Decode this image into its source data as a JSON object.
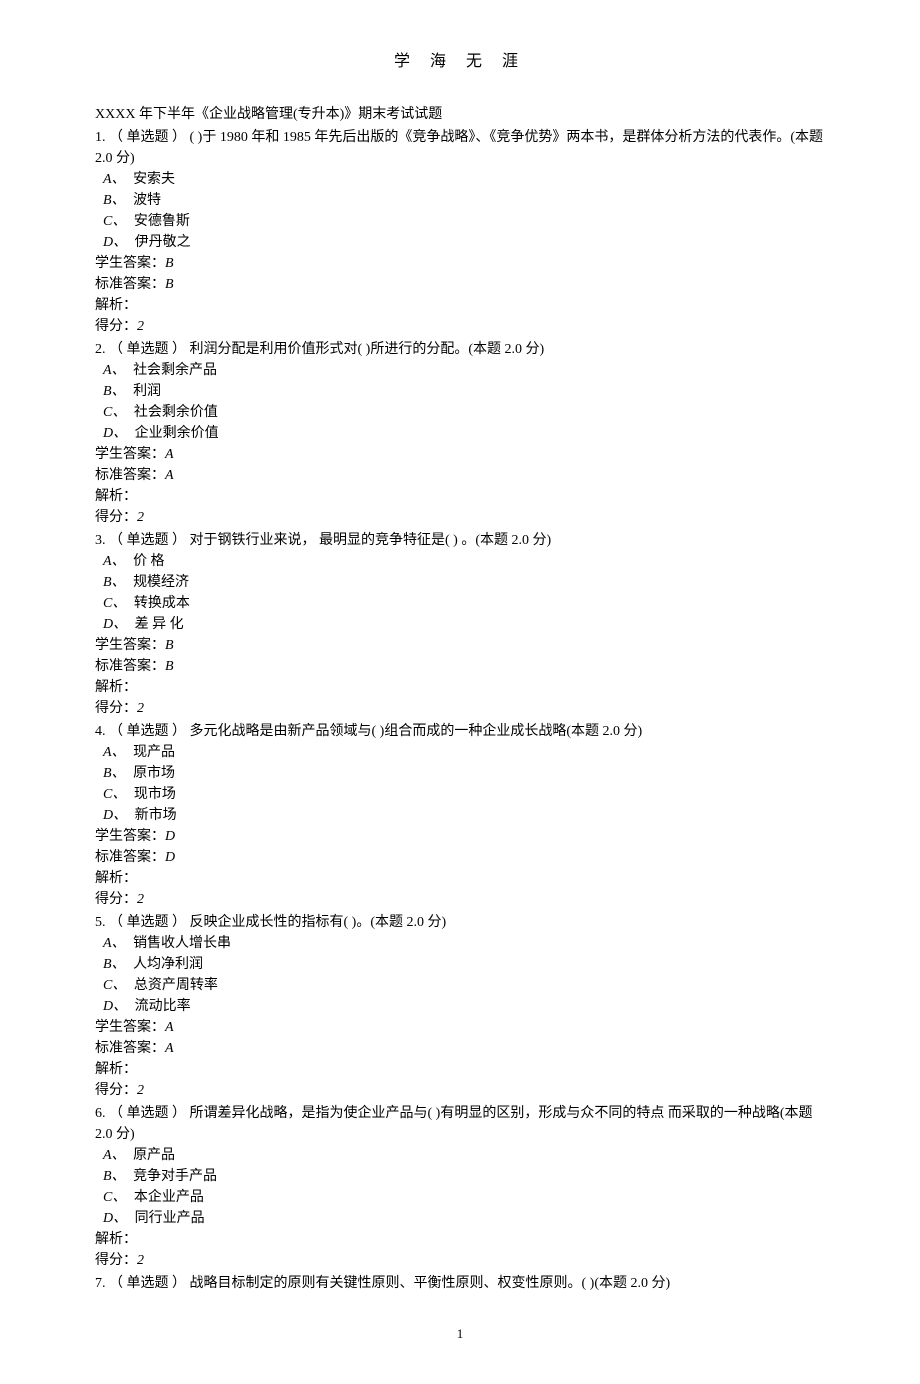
{
  "header": {
    "title": "学  海  无  涯"
  },
  "exam_title": "XXXX 年下半年《企业战略管理(专升本)》期末考试试题",
  "questions": [
    {
      "number": "1.",
      "type": "（ 单选题 ）",
      "text_before": "(      )于 1980 年和 1985 年先后出版的《竞争战略》、《竞争优势》两本书，是群体分析方法的代表作。",
      "points": "(本题 2.0 分)",
      "options": [
        {
          "label": "A、",
          "text": "安索夫"
        },
        {
          "label": "B、",
          "text": "波特"
        },
        {
          "label": "C、",
          "text": "安德鲁斯"
        },
        {
          "label": "D、",
          "text": "伊丹敬之"
        }
      ],
      "student_answer_label": "学生答案：",
      "student_answer": "B",
      "standard_answer_label": "标准答案：",
      "standard_answer": "B",
      "analysis_label": "解析：",
      "score_label": "得分：",
      "score": "2"
    },
    {
      "number": "2.",
      "type": "（ 单选题 ）",
      "text_before": "利润分配是利用价值形式对(      )所进行的分配。",
      "points": "(本题 2.0 分)",
      "options": [
        {
          "label": "A、",
          "text": "社会剩余产品"
        },
        {
          "label": "B、",
          "text": "利润"
        },
        {
          "label": "C、",
          "text": "社会剩余价值"
        },
        {
          "label": "D、",
          "text": "企业剩余价值"
        }
      ],
      "student_answer_label": "学生答案：",
      "student_answer": "A",
      "standard_answer_label": "标准答案：",
      "standard_answer": "A",
      "analysis_label": "解析：",
      "score_label": "得分：",
      "score": "2"
    },
    {
      "number": "3.",
      "type": "（ 单选题 ）",
      "text_before": " 对于钢铁行业来说， 最明显的竞争特征是(      ) 。",
      "points": "(本题 2.0 分)",
      "options": [
        {
          "label": "A、",
          "text": "价 格"
        },
        {
          "label": "B、",
          "text": "规模经济"
        },
        {
          "label": "C、",
          "text": "转换成本"
        },
        {
          "label": "D、",
          "text": "差 异 化"
        }
      ],
      "student_answer_label": "学生答案：",
      "student_answer": "B",
      "standard_answer_label": "标准答案：",
      "standard_answer": "B",
      "analysis_label": "解析：",
      "score_label": "得分：",
      "score": "2"
    },
    {
      "number": "4.",
      "type": "（ 单选题 ）",
      "text_before": "多元化战略是由新产品领域与(      )组合而成的一种企业成长战略",
      "points": "(本题 2.0 分)",
      "options": [
        {
          "label": "A、",
          "text": "现产品"
        },
        {
          "label": "B、",
          "text": "原市场"
        },
        {
          "label": "C、",
          "text": "现市场"
        },
        {
          "label": "D、",
          "text": "新市场"
        }
      ],
      "student_answer_label": "学生答案：",
      "student_answer": "D",
      "standard_answer_label": "标准答案：",
      "standard_answer": "D",
      "analysis_label": "解析：",
      "score_label": "得分：",
      "score": "2"
    },
    {
      "number": "5.",
      "type": "（ 单选题 ）",
      "text_before": "反映企业成长性的指标有(      )。",
      "points": "(本题 2.0 分)",
      "options": [
        {
          "label": "A、",
          "text": "销售收人增长串"
        },
        {
          "label": "B、",
          "text": "人均净利润"
        },
        {
          "label": "C、",
          "text": "总资产周转率"
        },
        {
          "label": "D、",
          "text": "流动比率"
        }
      ],
      "student_answer_label": "学生答案：",
      "student_answer": "A",
      "standard_answer_label": "标准答案：",
      "standard_answer": "A",
      "analysis_label": "解析：",
      "score_label": "得分：",
      "score": "2"
    },
    {
      "number": "6.",
      "type": "（ 单选题 ）",
      "text_before": "所谓差异化战略，是指为使企业产品与(      )有明显的区别，形成与众不同的特点  而采取的一种战略",
      "points": "(本题 2.0 分)",
      "options": [
        {
          "label": "A、",
          "text": "原产品"
        },
        {
          "label": "B、",
          "text": "竞争对手产品"
        },
        {
          "label": "C、",
          "text": "本企业产品"
        },
        {
          "label": "D、",
          "text": "同行业产品"
        }
      ],
      "student_answer_label": "",
      "student_answer": "",
      "standard_answer_label": "",
      "standard_answer": "",
      "analysis_label": "解析：",
      "score_label": "得分：",
      "score": "2"
    },
    {
      "number": "7.",
      "type": "（ 单选题 ）",
      "text_before": "战略目标制定的原则有关键性原则、平衡性原则、权变性原则。(      )",
      "points": "(本题 2.0 分)",
      "options": [],
      "student_answer_label": "",
      "student_answer": "",
      "standard_answer_label": "",
      "standard_answer": "",
      "analysis_label": "",
      "score_label": "",
      "score": ""
    }
  ],
  "page_number": "1"
}
